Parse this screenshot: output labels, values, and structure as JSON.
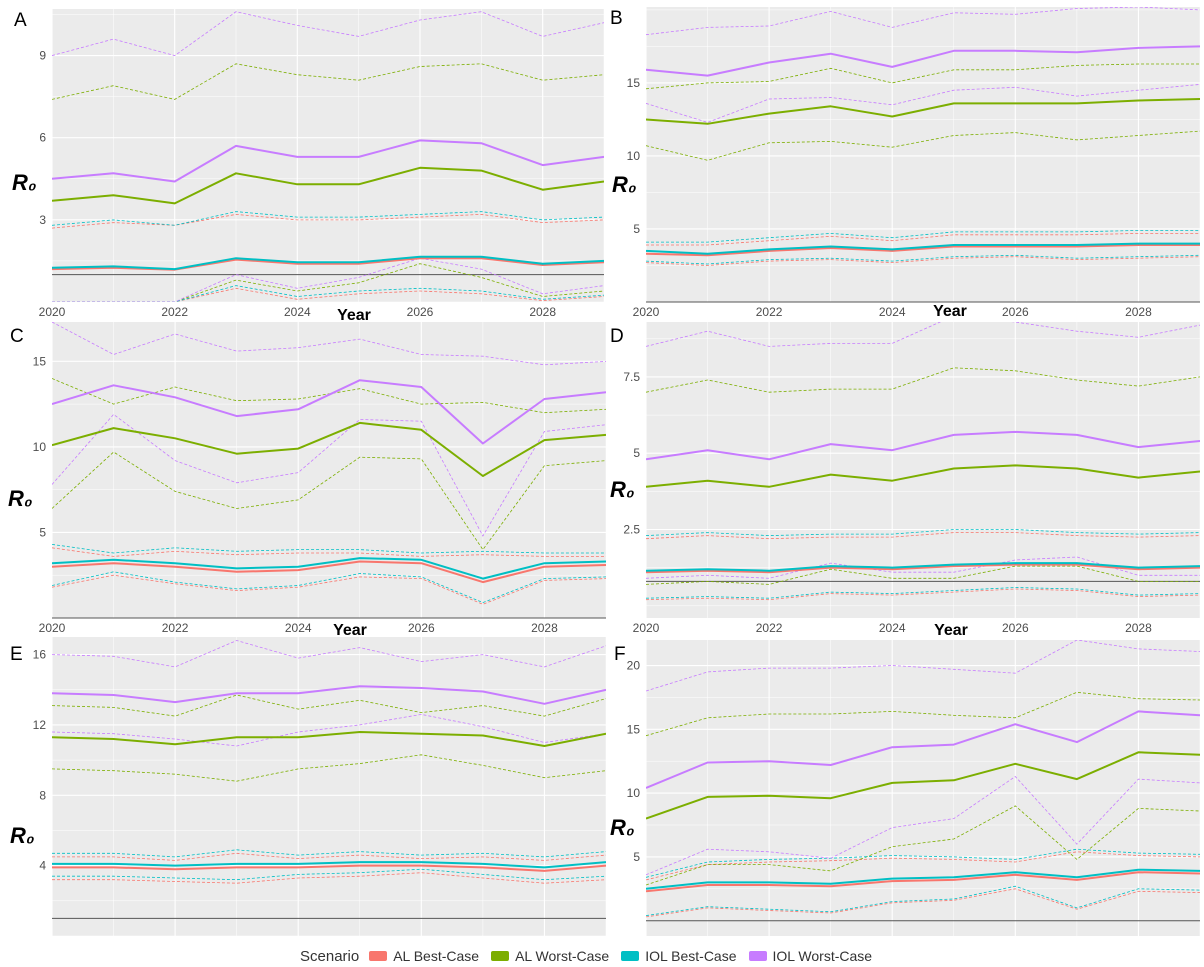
{
  "colors": {
    "AL Best-Case": "#F8766D",
    "AL Worst-Case": "#7CAE00",
    "IOL Best-Case": "#00BFC4",
    "IOL Worst-Case": "#C77CFF",
    "panel_bg": "#EBEBEB",
    "grid": "#FFFFFF",
    "reference_line": "#555555"
  },
  "legend": {
    "title": "Scenario",
    "position": "bottom",
    "items": [
      "AL Best-Case",
      "AL Worst-Case",
      "IOL Best-Case",
      "IOL Worst-Case"
    ]
  },
  "chart_data": [
    {
      "panel": "A",
      "type": "line",
      "ylabel": "R₀",
      "xlabel": "Year",
      "x": [
        2020,
        2021,
        2022,
        2023,
        2024,
        2025,
        2026,
        2027,
        2028,
        2029
      ],
      "xticks": [
        2020,
        2022,
        2024,
        2026,
        2028
      ],
      "yticks": [
        3,
        6,
        9
      ],
      "ylim": [
        0,
        10.7
      ],
      "reference_line": 1,
      "grid": true,
      "series": [
        {
          "name": "AL Best-Case",
          "values": [
            1.2,
            1.25,
            1.18,
            1.55,
            1.4,
            1.4,
            1.6,
            1.6,
            1.35,
            1.45
          ],
          "lower": [
            0.0,
            0.0,
            0.0,
            0.5,
            0.1,
            0.3,
            0.4,
            0.3,
            0.05,
            0.2
          ],
          "upper": [
            2.7,
            2.9,
            2.8,
            3.2,
            3.0,
            3.0,
            3.1,
            3.2,
            2.9,
            3.0
          ]
        },
        {
          "name": "AL Worst-Case",
          "values": [
            3.7,
            3.9,
            3.6,
            4.7,
            4.3,
            4.3,
            4.9,
            4.8,
            4.1,
            4.4
          ],
          "lower": [
            0.0,
            0.0,
            0.0,
            0.8,
            0.4,
            0.7,
            1.4,
            0.9,
            0.2,
            0.4
          ],
          "upper": [
            7.4,
            7.9,
            7.4,
            8.7,
            8.3,
            8.1,
            8.6,
            8.7,
            8.1,
            8.3
          ]
        },
        {
          "name": "IOL Best-Case",
          "values": [
            1.25,
            1.3,
            1.2,
            1.6,
            1.45,
            1.45,
            1.65,
            1.65,
            1.4,
            1.5
          ],
          "lower": [
            0.0,
            0.0,
            0.0,
            0.6,
            0.2,
            0.4,
            0.5,
            0.4,
            0.1,
            0.25
          ],
          "upper": [
            2.8,
            3.0,
            2.8,
            3.3,
            3.1,
            3.1,
            3.2,
            3.3,
            3.0,
            3.1
          ]
        },
        {
          "name": "IOL Worst-Case",
          "values": [
            4.5,
            4.7,
            4.4,
            5.7,
            5.3,
            5.3,
            5.9,
            5.8,
            5.0,
            5.3
          ],
          "lower": [
            0.0,
            0.0,
            0.0,
            1.0,
            0.5,
            0.9,
            1.6,
            1.2,
            0.3,
            0.6
          ],
          "upper": [
            9.0,
            9.6,
            9.0,
            10.6,
            10.1,
            9.7,
            10.3,
            10.6,
            9.7,
            10.2
          ]
        }
      ]
    },
    {
      "panel": "B",
      "type": "line",
      "ylabel": "R₀",
      "xlabel": "Year",
      "x": [
        2020,
        2021,
        2022,
        2023,
        2024,
        2025,
        2026,
        2027,
        2028,
        2029
      ],
      "xticks": [
        2020,
        2022,
        2024,
        2026,
        2028
      ],
      "yticks": [
        5,
        10,
        15
      ],
      "ylim": [
        0,
        20.2
      ],
      "reference_line": 0,
      "grid": true,
      "series": [
        {
          "name": "AL Best-Case",
          "values": [
            3.3,
            3.2,
            3.5,
            3.7,
            3.5,
            3.8,
            3.8,
            3.8,
            3.9,
            3.9
          ],
          "lower": [
            2.7,
            2.5,
            2.8,
            2.9,
            2.7,
            3.0,
            3.1,
            2.9,
            3.0,
            3.1
          ],
          "upper": [
            3.9,
            3.9,
            4.2,
            4.5,
            4.2,
            4.6,
            4.6,
            4.6,
            4.7,
            4.7
          ]
        },
        {
          "name": "AL Worst-Case",
          "values": [
            12.5,
            12.2,
            12.9,
            13.4,
            12.7,
            13.6,
            13.6,
            13.6,
            13.8,
            13.9
          ],
          "lower": [
            10.7,
            9.7,
            10.9,
            11.0,
            10.6,
            11.4,
            11.6,
            11.1,
            11.4,
            11.7
          ],
          "upper": [
            14.6,
            15.0,
            15.1,
            16.0,
            15.0,
            15.9,
            15.9,
            16.2,
            16.3,
            16.3
          ]
        },
        {
          "name": "IOL Best-Case",
          "values": [
            3.5,
            3.3,
            3.6,
            3.8,
            3.6,
            3.9,
            3.9,
            3.9,
            4.0,
            4.0
          ],
          "lower": [
            2.8,
            2.6,
            2.9,
            3.0,
            2.8,
            3.1,
            3.2,
            3.0,
            3.1,
            3.2
          ],
          "upper": [
            4.1,
            4.1,
            4.4,
            4.7,
            4.4,
            4.8,
            4.8,
            4.8,
            4.9,
            4.9
          ]
        },
        {
          "name": "IOL Worst-Case",
          "values": [
            15.9,
            15.5,
            16.4,
            17.0,
            16.1,
            17.2,
            17.2,
            17.1,
            17.4,
            17.5
          ],
          "lower": [
            13.6,
            12.3,
            13.9,
            14.0,
            13.5,
            14.5,
            14.7,
            14.1,
            14.5,
            14.9
          ],
          "upper": [
            18.3,
            18.8,
            18.9,
            19.9,
            18.8,
            19.8,
            19.7,
            20.1,
            20.2,
            20.0
          ]
        }
      ]
    },
    {
      "panel": "C",
      "type": "line",
      "ylabel": "R₀",
      "xlabel": "Year",
      "x": [
        2020,
        2021,
        2022,
        2023,
        2024,
        2025,
        2026,
        2027,
        2028,
        2029
      ],
      "xticks": [
        2020,
        2022,
        2024,
        2026,
        2028
      ],
      "yticks": [
        5,
        10,
        15
      ],
      "ylim": [
        0,
        17.3
      ],
      "reference_line": 0,
      "grid": true,
      "series": [
        {
          "name": "AL Best-Case",
          "values": [
            3.0,
            3.2,
            3.0,
            2.7,
            2.8,
            3.3,
            3.2,
            2.1,
            3.0,
            3.1
          ],
          "lower": [
            1.8,
            2.5,
            2.0,
            1.6,
            1.8,
            2.4,
            2.3,
            0.8,
            2.2,
            2.3
          ],
          "upper": [
            4.1,
            3.6,
            3.9,
            3.7,
            3.8,
            3.8,
            3.6,
            3.7,
            3.6,
            3.6
          ]
        },
        {
          "name": "AL Worst-Case",
          "values": [
            10.1,
            11.1,
            10.5,
            9.6,
            9.9,
            11.4,
            11.0,
            8.3,
            10.4,
            10.7
          ],
          "lower": [
            6.4,
            9.7,
            7.4,
            6.4,
            6.9,
            9.4,
            9.3,
            4.0,
            8.9,
            9.2
          ],
          "upper": [
            14.0,
            12.5,
            13.5,
            12.7,
            12.8,
            13.4,
            12.5,
            12.6,
            12.0,
            12.2
          ]
        },
        {
          "name": "IOL Best-Case",
          "values": [
            3.2,
            3.4,
            3.2,
            2.9,
            3.0,
            3.5,
            3.4,
            2.3,
            3.2,
            3.3
          ],
          "lower": [
            1.9,
            2.7,
            2.1,
            1.7,
            1.9,
            2.6,
            2.4,
            0.9,
            2.3,
            2.4
          ],
          "upper": [
            4.3,
            3.8,
            4.1,
            3.9,
            4.0,
            4.0,
            3.8,
            3.9,
            3.8,
            3.8
          ]
        },
        {
          "name": "IOL Worst-Case",
          "values": [
            12.5,
            13.6,
            12.9,
            11.8,
            12.2,
            13.9,
            13.5,
            10.2,
            12.8,
            13.2
          ],
          "lower": [
            7.8,
            11.9,
            9.2,
            7.9,
            8.5,
            11.6,
            11.5,
            4.8,
            10.9,
            11.3
          ],
          "upper": [
            17.3,
            15.4,
            16.6,
            15.6,
            15.8,
            16.3,
            15.4,
            15.3,
            14.8,
            15.0
          ]
        }
      ]
    },
    {
      "panel": "D",
      "type": "line",
      "ylabel": "R₀",
      "xlabel": "Year",
      "x": [
        2020,
        2021,
        2022,
        2023,
        2024,
        2025,
        2026,
        2027,
        2028,
        2029
      ],
      "xticks": [
        2020,
        2022,
        2024,
        2026,
        2028
      ],
      "yticks": [
        2.5,
        5,
        7.5
      ],
      "ylim": [
        -0.4,
        9.3
      ],
      "reference_line": 0.8,
      "grid": true,
      "series": [
        {
          "name": "AL Best-Case",
          "values": [
            1.1,
            1.15,
            1.1,
            1.25,
            1.2,
            1.3,
            1.35,
            1.35,
            1.2,
            1.25
          ],
          "lower": [
            0.2,
            0.25,
            0.2,
            0.4,
            0.35,
            0.45,
            0.55,
            0.5,
            0.3,
            0.35
          ],
          "upper": [
            2.2,
            2.3,
            2.2,
            2.25,
            2.25,
            2.4,
            2.4,
            2.3,
            2.25,
            2.3
          ]
        },
        {
          "name": "AL Worst-Case",
          "values": [
            3.9,
            4.1,
            3.9,
            4.3,
            4.1,
            4.5,
            4.6,
            4.5,
            4.2,
            4.4
          ],
          "lower": [
            0.7,
            0.8,
            0.7,
            1.2,
            0.9,
            0.9,
            1.3,
            1.3,
            0.8,
            0.8
          ],
          "upper": [
            7.0,
            7.4,
            7.0,
            7.1,
            7.1,
            7.8,
            7.7,
            7.4,
            7.2,
            7.5
          ]
        },
        {
          "name": "IOL Best-Case",
          "values": [
            1.15,
            1.2,
            1.15,
            1.3,
            1.25,
            1.35,
            1.4,
            1.4,
            1.25,
            1.3
          ],
          "lower": [
            0.25,
            0.3,
            0.25,
            0.45,
            0.4,
            0.5,
            0.6,
            0.55,
            0.35,
            0.4
          ],
          "upper": [
            2.3,
            2.4,
            2.3,
            2.35,
            2.35,
            2.5,
            2.5,
            2.4,
            2.35,
            2.4
          ]
        },
        {
          "name": "IOL Worst-Case",
          "values": [
            4.8,
            5.1,
            4.8,
            5.3,
            5.1,
            5.6,
            5.7,
            5.6,
            5.2,
            5.4
          ],
          "lower": [
            0.9,
            1.0,
            0.9,
            1.4,
            1.1,
            1.1,
            1.5,
            1.6,
            1.0,
            1.0
          ],
          "upper": [
            8.5,
            9.0,
            8.5,
            8.6,
            8.6,
            9.5,
            9.3,
            9.0,
            8.8,
            9.2
          ]
        }
      ]
    },
    {
      "panel": "E",
      "type": "line",
      "ylabel": "R₀",
      "xlabel": "",
      "x": [
        2020,
        2021,
        2022,
        2023,
        2024,
        2025,
        2026,
        2027,
        2028,
        2029
      ],
      "xticks": [],
      "yticks": [
        4,
        8,
        12,
        16
      ],
      "ylim": [
        0,
        17.0
      ],
      "reference_line": 1,
      "grid": true,
      "series": [
        {
          "name": "AL Best-Case",
          "values": [
            3.9,
            3.9,
            3.8,
            3.9,
            3.9,
            4.0,
            4.0,
            3.9,
            3.7,
            4.0
          ],
          "lower": [
            3.2,
            3.2,
            3.1,
            3.0,
            3.3,
            3.4,
            3.6,
            3.3,
            3.0,
            3.2
          ],
          "upper": [
            4.5,
            4.5,
            4.3,
            4.7,
            4.4,
            4.6,
            4.4,
            4.5,
            4.3,
            4.6
          ]
        },
        {
          "name": "AL Worst-Case",
          "values": [
            11.3,
            11.2,
            10.9,
            11.3,
            11.3,
            11.6,
            11.5,
            11.4,
            10.8,
            11.5
          ],
          "lower": [
            9.5,
            9.4,
            9.2,
            8.8,
            9.5,
            9.8,
            10.3,
            9.7,
            9.0,
            9.4
          ],
          "upper": [
            13.1,
            13.0,
            12.5,
            13.7,
            12.9,
            13.4,
            12.7,
            13.1,
            12.5,
            13.5
          ]
        },
        {
          "name": "IOL Best-Case",
          "values": [
            4.1,
            4.1,
            4.0,
            4.1,
            4.1,
            4.2,
            4.2,
            4.1,
            3.9,
            4.2
          ],
          "lower": [
            3.4,
            3.4,
            3.3,
            3.2,
            3.5,
            3.6,
            3.8,
            3.5,
            3.2,
            3.4
          ],
          "upper": [
            4.7,
            4.7,
            4.5,
            4.9,
            4.6,
            4.8,
            4.6,
            4.7,
            4.5,
            4.8
          ]
        },
        {
          "name": "IOL Worst-Case",
          "values": [
            13.8,
            13.7,
            13.3,
            13.8,
            13.8,
            14.2,
            14.1,
            13.9,
            13.2,
            14.0
          ],
          "lower": [
            11.6,
            11.5,
            11.2,
            10.8,
            11.6,
            12.0,
            12.6,
            11.9,
            11.0,
            11.5
          ],
          "upper": [
            16.0,
            15.9,
            15.3,
            16.8,
            15.8,
            16.4,
            15.6,
            16.0,
            15.3,
            16.5
          ]
        }
      ]
    },
    {
      "panel": "F",
      "type": "line",
      "ylabel": "R₀",
      "xlabel": "",
      "x": [
        2020,
        2021,
        2022,
        2023,
        2024,
        2025,
        2026,
        2027,
        2028,
        2029
      ],
      "xticks": [],
      "yticks": [
        5,
        10,
        15,
        20
      ],
      "ylim": [
        -1.2,
        22.0
      ],
      "reference_line": 0,
      "grid": true,
      "series": [
        {
          "name": "AL Best-Case",
          "values": [
            2.3,
            2.8,
            2.8,
            2.7,
            3.1,
            3.2,
            3.6,
            3.2,
            3.8,
            3.7
          ],
          "lower": [
            0.3,
            1.0,
            0.8,
            0.6,
            1.4,
            1.6,
            2.5,
            0.9,
            2.3,
            2.2
          ],
          "upper": [
            3.2,
            4.4,
            4.6,
            4.7,
            4.9,
            4.8,
            4.6,
            5.4,
            5.1,
            5.0
          ]
        },
        {
          "name": "AL Worst-Case",
          "values": [
            8.0,
            9.7,
            9.8,
            9.6,
            10.8,
            11.0,
            12.3,
            11.1,
            13.2,
            13.0
          ],
          "lower": [
            2.8,
            4.4,
            4.4,
            3.9,
            5.8,
            6.4,
            9.0,
            4.8,
            8.8,
            8.6
          ],
          "upper": [
            14.5,
            15.9,
            16.2,
            16.2,
            16.4,
            16.1,
            15.9,
            17.9,
            17.4,
            17.3
          ]
        },
        {
          "name": "IOL Best-Case",
          "values": [
            2.5,
            3.0,
            3.0,
            2.9,
            3.3,
            3.4,
            3.8,
            3.4,
            4.0,
            3.9
          ],
          "lower": [
            0.4,
            1.1,
            0.9,
            0.7,
            1.5,
            1.7,
            2.7,
            1.0,
            2.5,
            2.4
          ],
          "upper": [
            3.4,
            4.6,
            4.8,
            4.9,
            5.1,
            5.0,
            4.8,
            5.6,
            5.3,
            5.2
          ]
        },
        {
          "name": "IOL Worst-Case",
          "values": [
            10.4,
            12.4,
            12.5,
            12.2,
            13.6,
            13.8,
            15.4,
            14.0,
            16.4,
            16.1
          ],
          "lower": [
            3.6,
            5.6,
            5.4,
            4.9,
            7.3,
            8.0,
            11.3,
            6.0,
            11.1,
            10.8
          ],
          "upper": [
            18.0,
            19.5,
            19.8,
            19.8,
            20.0,
            19.7,
            19.4,
            22.0,
            21.3,
            21.1
          ]
        }
      ]
    }
  ]
}
